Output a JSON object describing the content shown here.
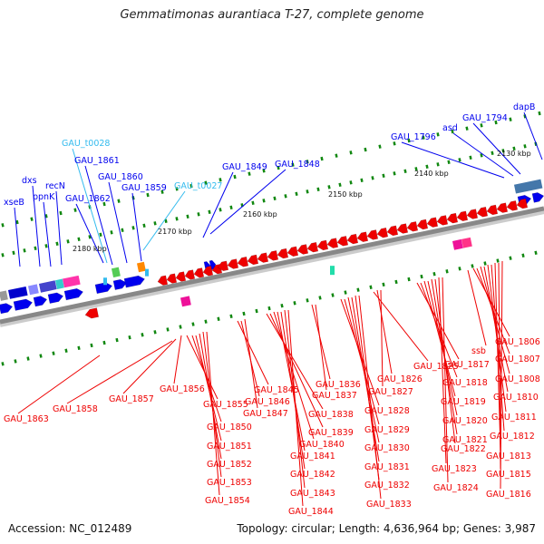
{
  "title": "Gemmatimonas aurantiaca T-27, complete genome",
  "footer": {
    "accession": "Accession: NC_012489",
    "topology": "Topology: circular; Length: 4,636,964 bp; Genes: 3,987"
  },
  "colors": {
    "forward_gene": "#0000ee",
    "reverse_gene": "#ee0000",
    "trna": "#33bbee",
    "backbone": "#888888",
    "tick": "#118811"
  },
  "scale_labels": [
    "2130 kbp",
    "2140 kbp",
    "2150 kbp",
    "2160 kbp",
    "2170 kbp",
    "2180 kbp"
  ],
  "forward_labels": [
    "xseB",
    "dxs",
    "ppnK",
    "recN",
    "GAU_1862",
    "GAU_1861",
    "GAU_t0028",
    "GAU_1860",
    "GAU_1859",
    "GAU_t0027",
    "GAU_1849",
    "GAU_1848",
    "GAU_1796",
    "asd",
    "GAU_1794",
    "dapB"
  ],
  "reverse_labels": [
    "GAU_1863",
    "GAU_1858",
    "GAU_1857",
    "GAU_1856",
    "GAU_1855",
    "GAU_1850",
    "GAU_1851",
    "GAU_1852",
    "GAU_1853",
    "GAU_1854",
    "GAU_1845",
    "GAU_1846",
    "GAU_1847",
    "GAU_1838",
    "GAU_1839",
    "GAU_1840",
    "GAU_1841",
    "GAU_1842",
    "GAU_1843",
    "GAU_1844",
    "GAU_1836",
    "GAU_1837",
    "GAU_1828",
    "GAU_1829",
    "GAU_1830",
    "GAU_1831",
    "GAU_1832",
    "GAU_1833",
    "GAU_1825",
    "GAU_1826",
    "GAU_1827",
    "GAU_1817",
    "GAU_1818",
    "GAU_1819",
    "GAU_1820",
    "GAU_1821",
    "GAU_1822",
    "GAU_1823",
    "GAU_1824",
    "ssb",
    "GAU_1806",
    "GAU_1807",
    "GAU_1808",
    "GAU_1810",
    "GAU_1811",
    "GAU_1812",
    "GAU_1813",
    "GAU_1815",
    "GAU_1816"
  ]
}
